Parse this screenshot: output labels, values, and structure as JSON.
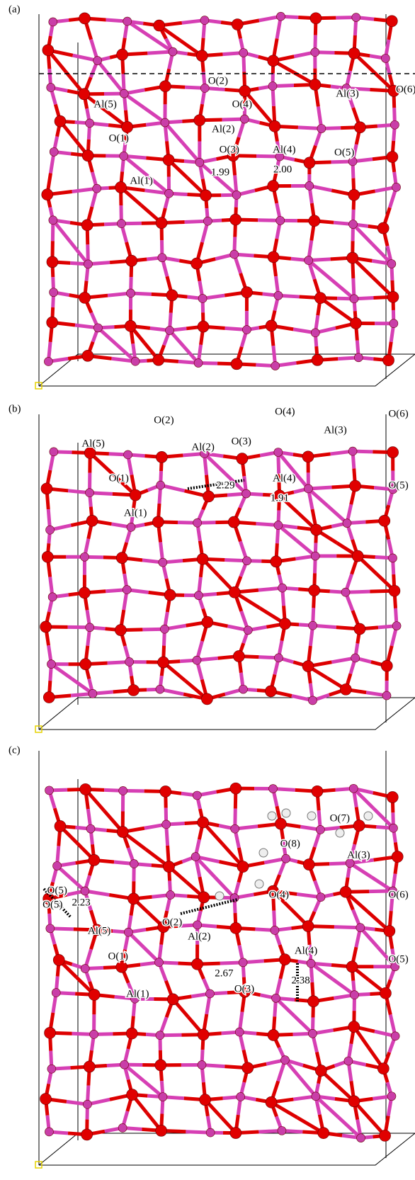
{
  "panels": [
    {
      "label": "(a)",
      "annotations": [
        "O(2)",
        "Al(5)",
        "O(4)",
        "Al(3)",
        "O(6)",
        "O(1)",
        "Al(2)",
        "O(3)",
        "Al(4)",
        "O(5)",
        "Al(1)",
        "1.99",
        "2.00"
      ]
    },
    {
      "label": "(b)",
      "annotations": [
        "O(2)",
        "O(4)",
        "O(6)",
        "Al(5)",
        "Al(2)",
        "O(3)",
        "Al(3)",
        "O(1)",
        "2.29",
        "O(5)",
        "Al(4)",
        "1.91",
        "Al(1)"
      ]
    },
    {
      "label": "(c)",
      "annotations": [
        "O(7)",
        "O(8)",
        "Al(3)",
        "O(5)",
        "O(5)",
        "2.23",
        "O(4)",
        "O(6)",
        "O(2)",
        "Al(5)",
        "Al(2)",
        "O(1)",
        "Al(4)",
        "O(5)",
        "2.67",
        "2.38",
        "O(3)",
        "Al(1)"
      ]
    }
  ]
}
